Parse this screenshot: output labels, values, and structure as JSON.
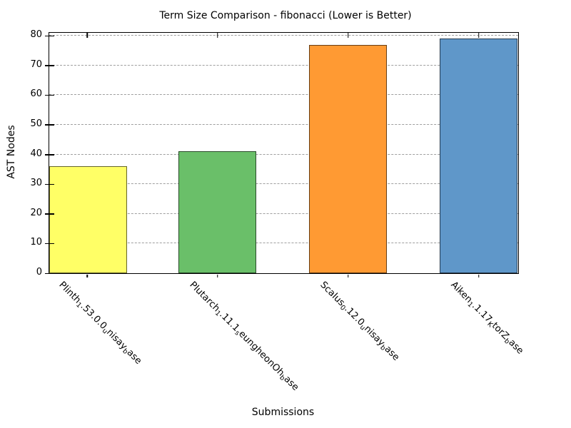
{
  "title": "Term Size Comparison - fibonacci (Lower is Better)",
  "axes": {
    "ylabel": "AST Nodes",
    "xlabel": "Submissions"
  },
  "chart_data": {
    "type": "bar",
    "title": "Term Size Comparison - fibonacci (Lower is Better)",
    "xlabel": "Submissions",
    "ylabel": "AST Nodes",
    "ylim": [
      0,
      81
    ],
    "yticks": [
      0,
      10,
      20,
      30,
      40,
      50,
      60,
      70,
      80
    ],
    "grid": "horizontal-dashed",
    "legend": "none",
    "categories": [
      "Plinth 1.53.0.0 unisay base",
      "Plutarch 1.11.1 seungheonOh base",
      "Scalus 0.12.0 unisay base",
      "Aiken 1.1.17 KtorZ base"
    ],
    "values": [
      36,
      41,
      77,
      79
    ],
    "colors": [
      "#ffff66",
      "#6abf69",
      "#ff9a33",
      "#5f97c9"
    ],
    "bars": [
      {
        "value": 36,
        "color": "#ffff66",
        "label_parts": [
          {
            "t": "Plinth"
          },
          {
            "t": "1",
            "sub": true
          },
          {
            "t": ".53.0.0"
          },
          {
            "t": "u",
            "sub": true
          },
          {
            "t": "nisay"
          },
          {
            "t": "b",
            "sub": true
          },
          {
            "t": "ase"
          }
        ]
      },
      {
        "value": 41,
        "color": "#6abf69",
        "label_parts": [
          {
            "t": "Plutarch"
          },
          {
            "t": "1",
            "sub": true
          },
          {
            "t": ".11.1"
          },
          {
            "t": "s",
            "sub": true
          },
          {
            "t": "eungheonOh"
          },
          {
            "t": "b",
            "sub": true
          },
          {
            "t": "ase"
          }
        ]
      },
      {
        "value": 77,
        "color": "#ff9a33",
        "label_parts": [
          {
            "t": "Scalus"
          },
          {
            "t": "0",
            "sub": true
          },
          {
            "t": ".12.0"
          },
          {
            "t": "u",
            "sub": true
          },
          {
            "t": "nisay"
          },
          {
            "t": "b",
            "sub": true
          },
          {
            "t": "ase"
          }
        ]
      },
      {
        "value": 79,
        "color": "#5f97c9",
        "label_parts": [
          {
            "t": "Aiken"
          },
          {
            "t": "1",
            "sub": true
          },
          {
            "t": ".1.17"
          },
          {
            "t": "K",
            "sub": true
          },
          {
            "t": "torZ"
          },
          {
            "t": "b",
            "sub": true
          },
          {
            "t": "ase"
          }
        ]
      }
    ]
  }
}
